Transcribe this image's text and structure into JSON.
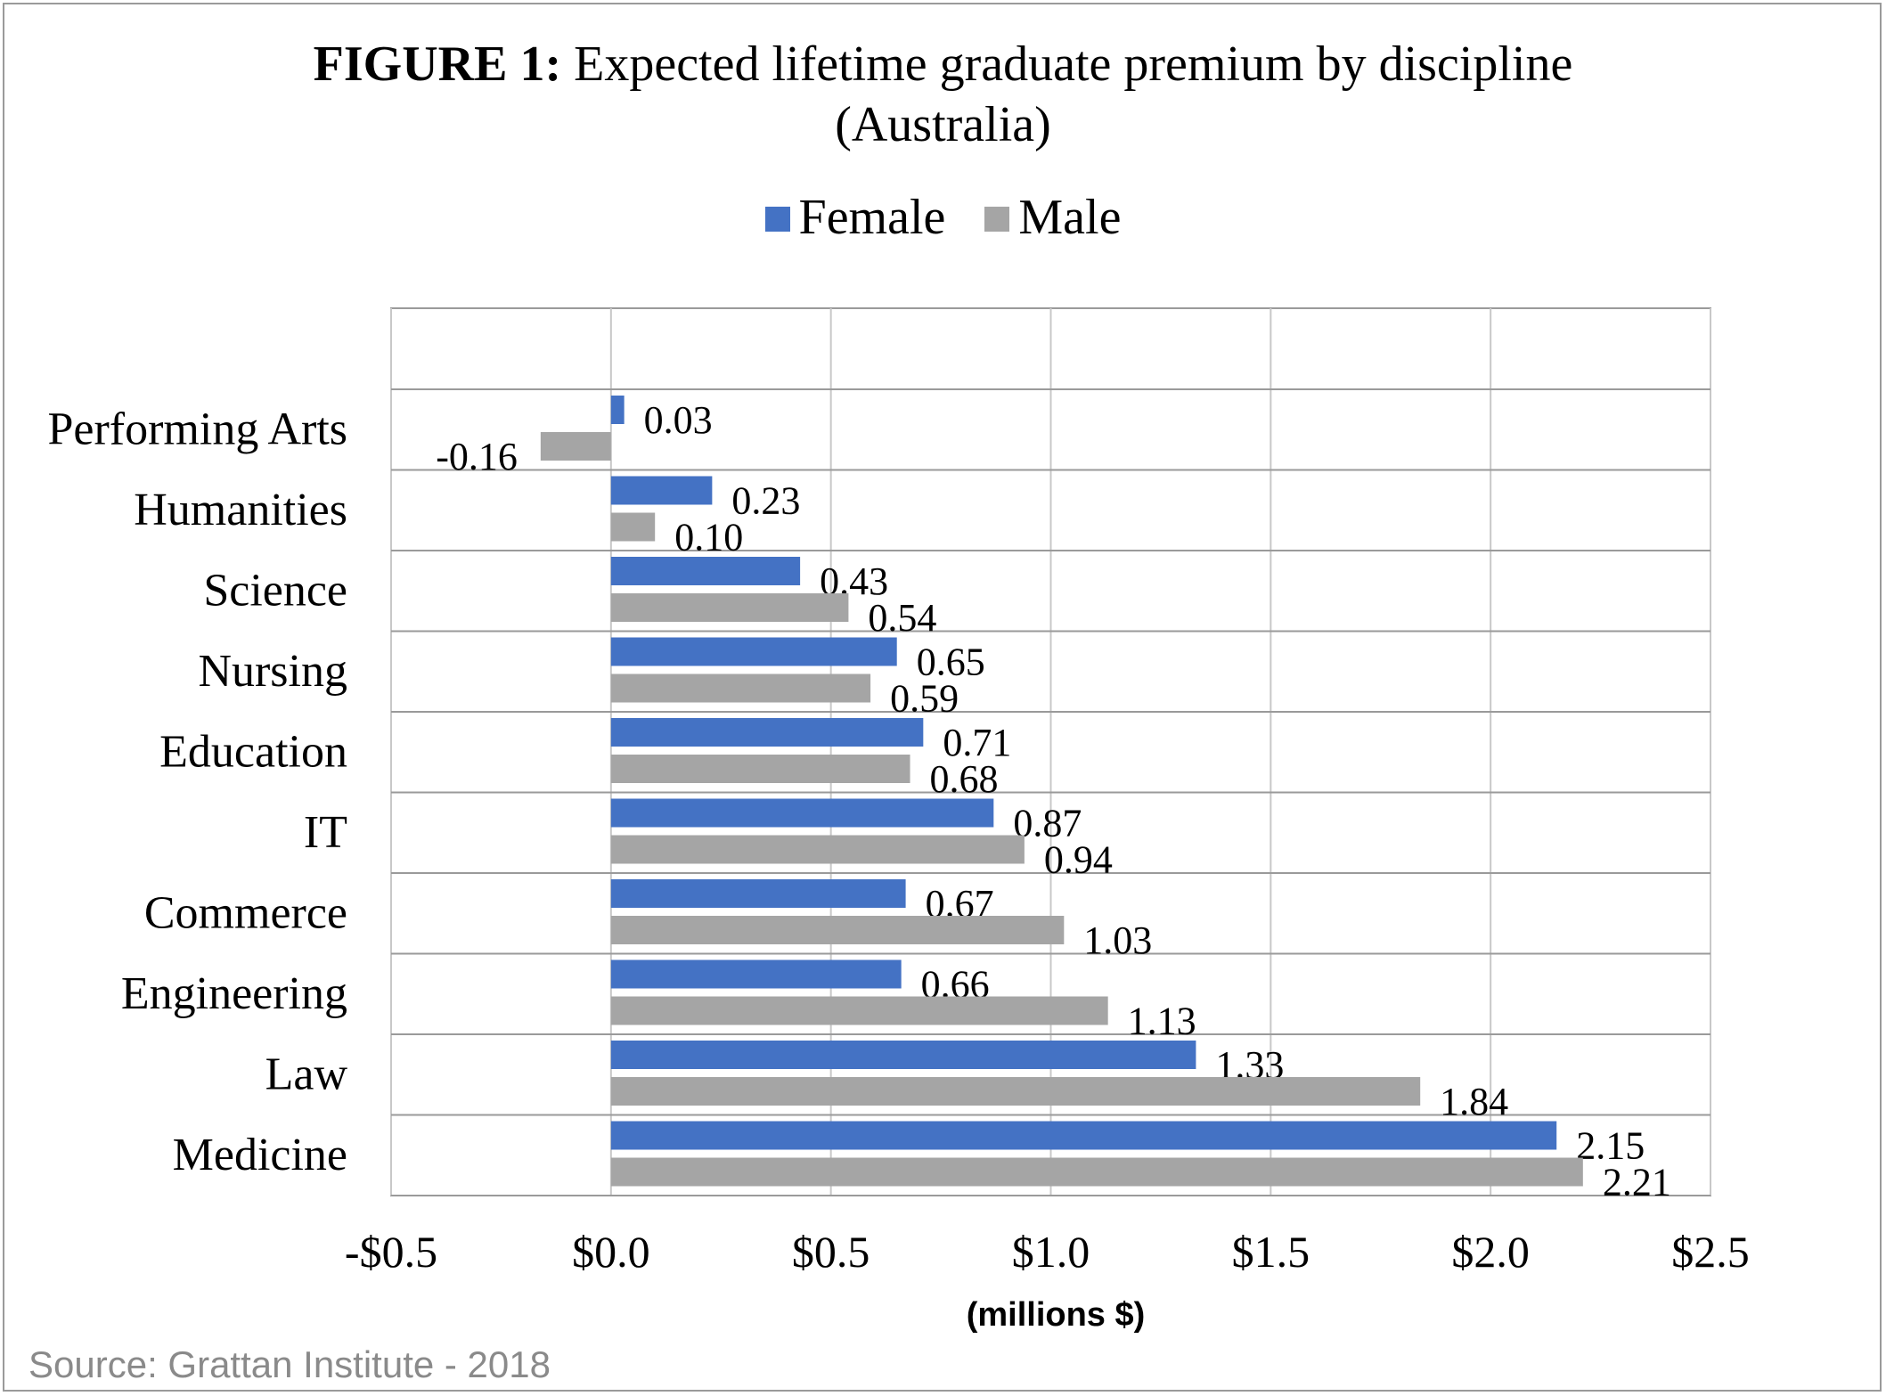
{
  "header": {
    "title_bold": "FIGURE 1:",
    "title_rest": "Expected lifetime graduate premium by discipline",
    "title_line2": "(Australia)"
  },
  "source": "Source: Grattan Institute - 2018",
  "colors": {
    "female": "#4472C4",
    "male": "#A5A5A5",
    "grid": "#c8c8c8",
    "axis": "#9a9a9a"
  },
  "chart_data": {
    "type": "bar",
    "orientation": "horizontal",
    "categories": [
      "Performing Arts",
      "Humanities",
      "Science",
      "Nursing",
      "Education",
      "IT",
      "Commerce",
      "Engineering",
      "Law",
      "Medicine"
    ],
    "series": [
      {
        "name": "Female",
        "values": [
          0.03,
          0.23,
          0.43,
          0.65,
          0.71,
          0.87,
          0.67,
          0.66,
          1.33,
          2.15
        ]
      },
      {
        "name": "Male",
        "values": [
          -0.16,
          0.1,
          0.54,
          0.59,
          0.68,
          0.94,
          1.03,
          1.13,
          1.84,
          2.21
        ]
      }
    ],
    "data_labels": {
      "Female": [
        "0.03",
        "0.23",
        "0.43",
        "0.65",
        "0.71",
        "0.87",
        "0.67",
        "0.66",
        "1.33",
        "2.15"
      ],
      "Male": [
        "-0.16",
        "0.10",
        "0.54",
        "0.59",
        "0.68",
        "0.94",
        "1.03",
        "1.13",
        "1.84",
        "2.21"
      ]
    },
    "xlabel": "(millions $)",
    "xlim": [
      -0.5,
      2.5
    ],
    "xticks": [
      -0.5,
      0.0,
      0.5,
      1.0,
      1.5,
      2.0,
      2.5
    ],
    "xtick_labels": [
      "-$0.5",
      "$0.0",
      "$0.5",
      "$1.0",
      "$1.5",
      "$2.0",
      "$2.5"
    ],
    "legend_position": "top",
    "grid": true
  }
}
